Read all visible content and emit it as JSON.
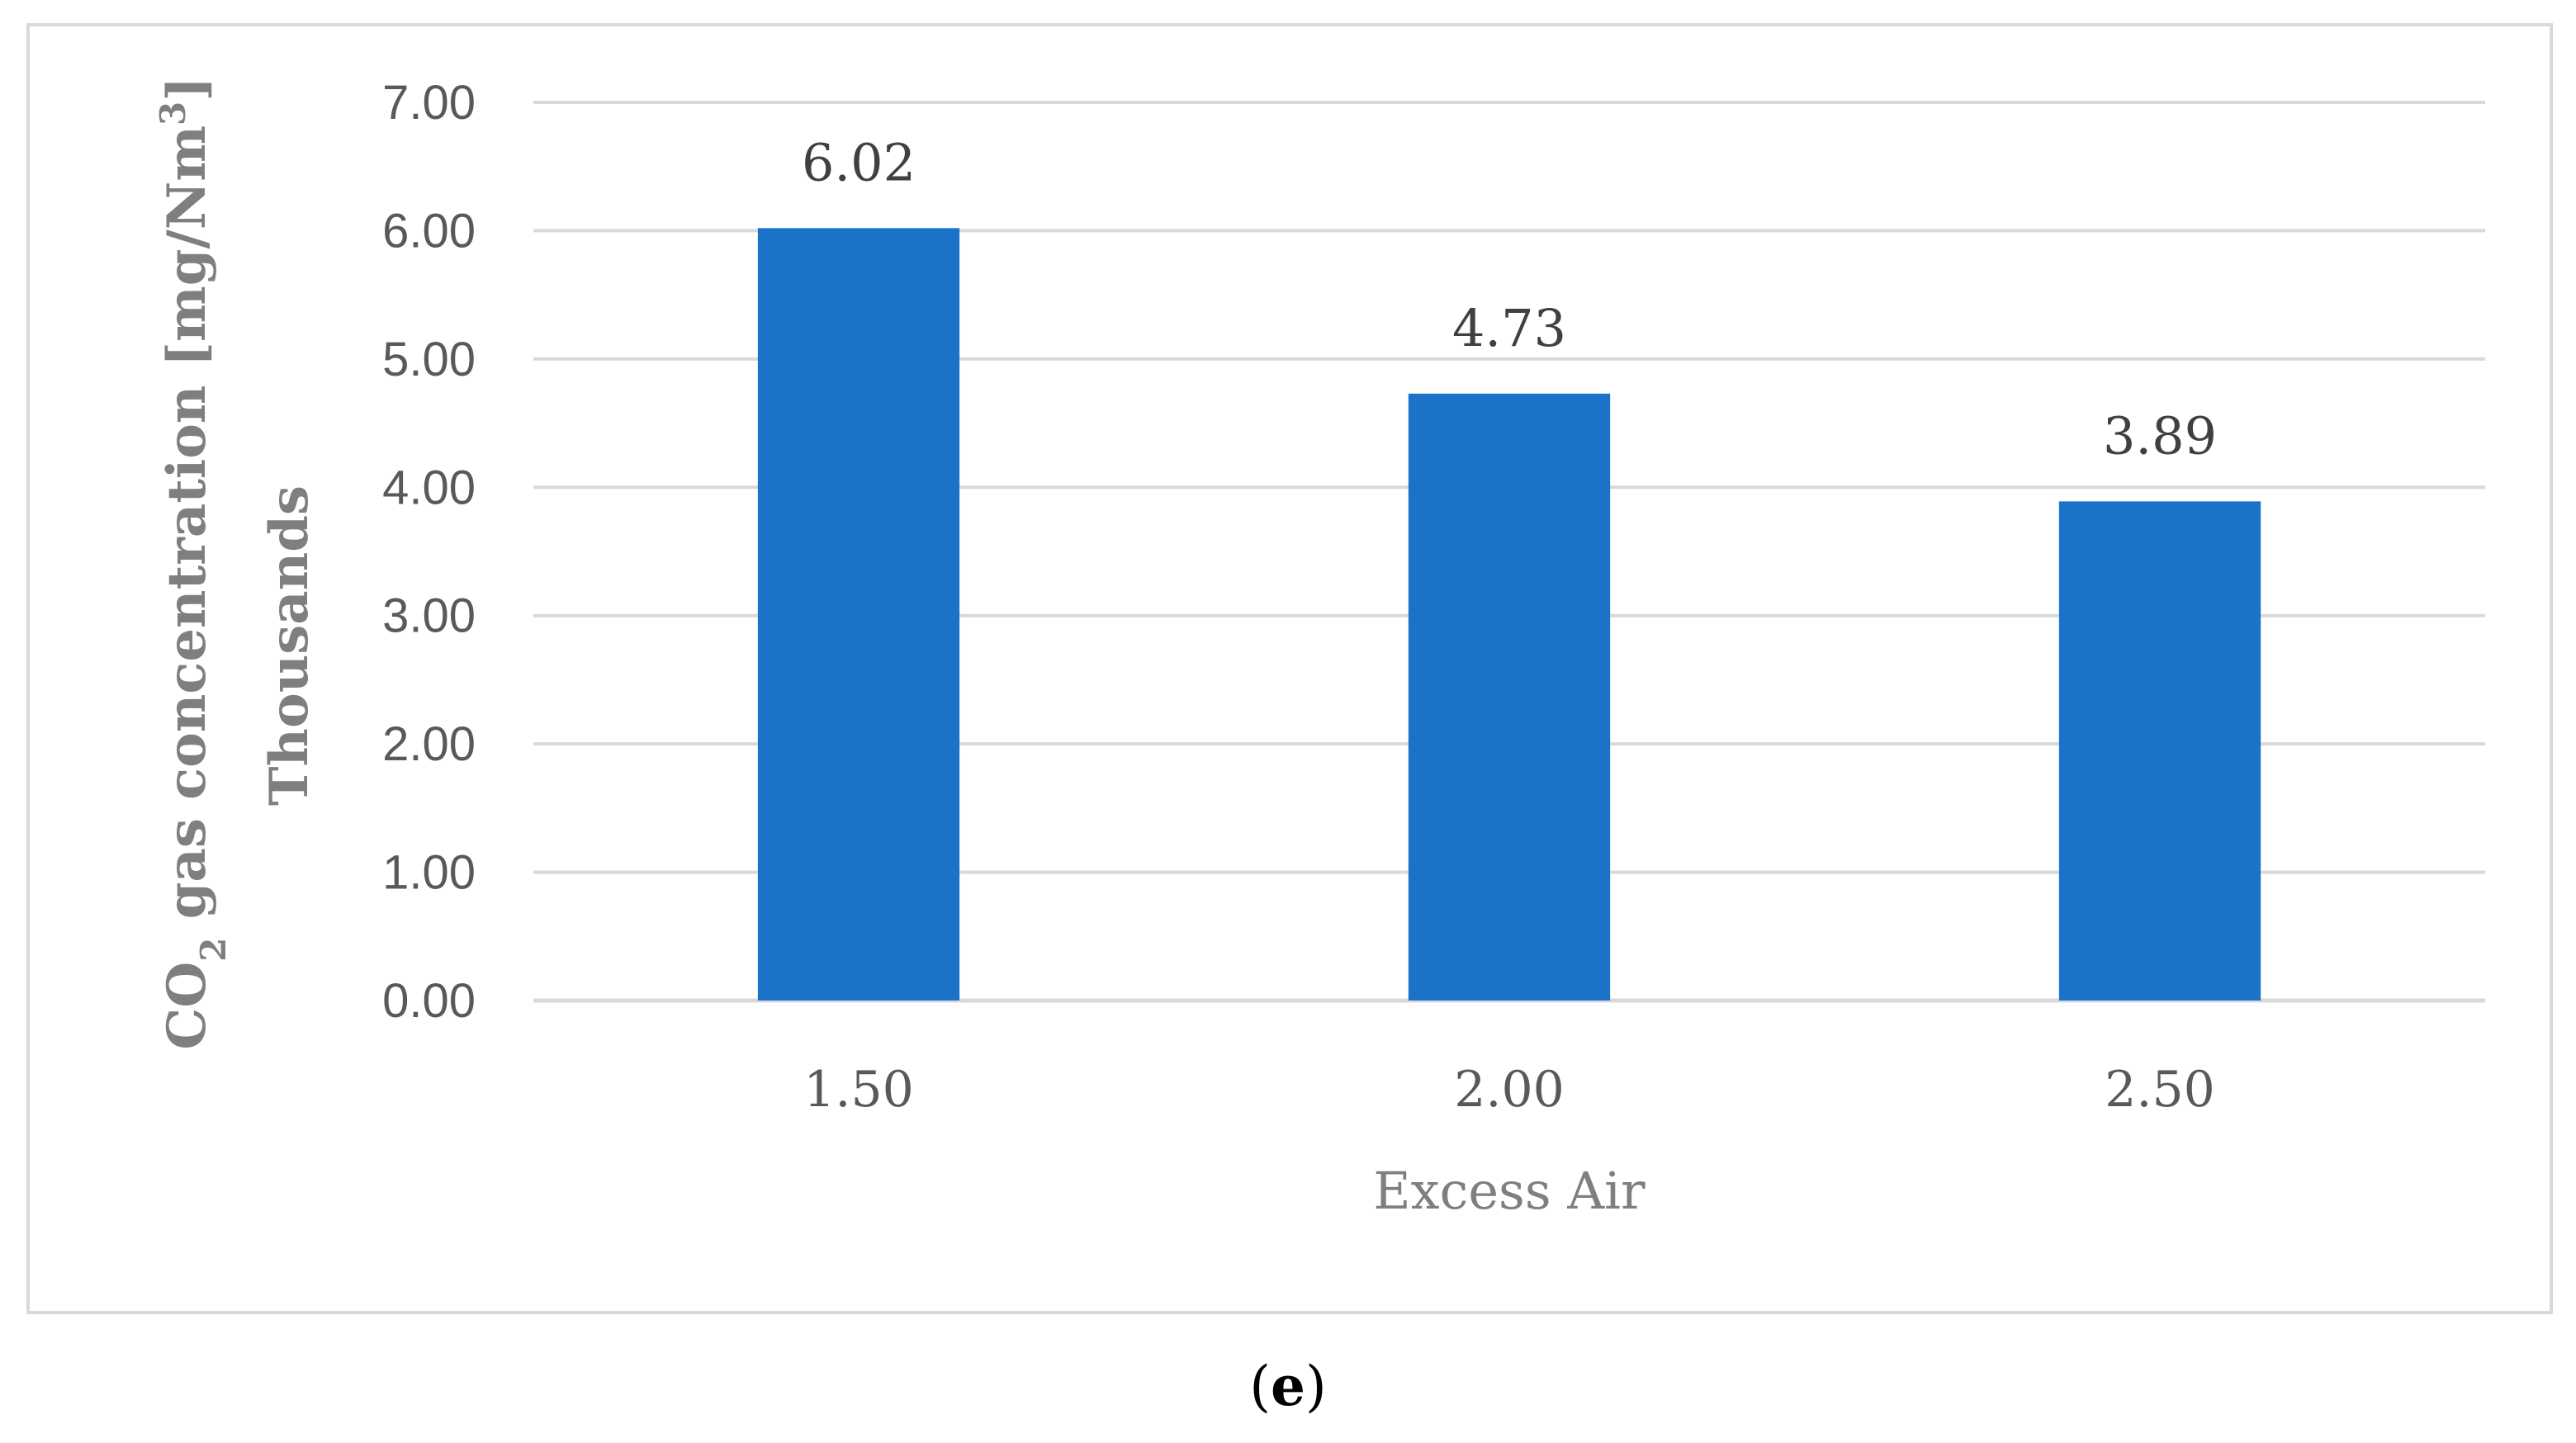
{
  "chart_data": {
    "type": "bar",
    "categories": [
      "1.50",
      "2.00",
      "2.50"
    ],
    "values": [
      6.02,
      4.73,
      3.89
    ],
    "data_labels": [
      "6.02",
      "4.73",
      "3.89"
    ],
    "xlabel": "Excess Air",
    "ylabel_parts": {
      "prefix": "CO",
      "subscript": "2",
      "middle": " gas concentration [mg/Nm",
      "superscript": "3",
      "suffix": "]"
    },
    "ylabel_unit": "Thousands",
    "ylim": [
      0,
      7
    ],
    "yticks": [
      "0.00",
      "1.00",
      "2.00",
      "3.00",
      "4.00",
      "5.00",
      "6.00",
      "7.00"
    ],
    "grid": true,
    "legend": "none",
    "bar_color": "#1a73c8",
    "grid_color": "#d9d9d9"
  },
  "panel": {
    "open": "(",
    "letter": "e",
    "close": ")"
  }
}
